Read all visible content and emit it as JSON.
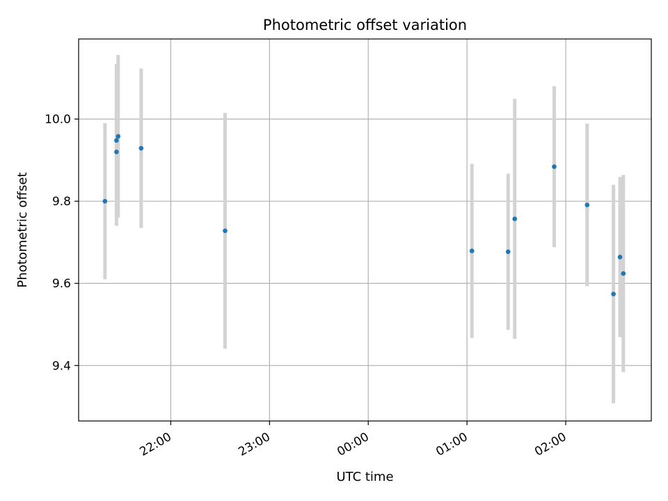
{
  "chart_data": {
    "type": "scatter",
    "title": "Photometric offset variation",
    "xlabel": "UTC time",
    "ylabel": "Photometric offset",
    "x_axis": "time",
    "xlim": [
      "21:04",
      "02:52"
    ],
    "ylim": [
      9.265,
      10.195
    ],
    "x_ticks": [
      "22:00",
      "23:00",
      "00:00",
      "01:00",
      "02:00"
    ],
    "y_ticks": [
      "9.4",
      "9.6",
      "9.8",
      "10.0"
    ],
    "grid": true,
    "marker_color": "#1f77b4",
    "errorbar_color": "#d3d3d3",
    "points": [
      {
        "x": "21:20",
        "y": 9.8,
        "err": 0.19
      },
      {
        "x": "21:27",
        "y": 9.92,
        "err": 0.18
      },
      {
        "x": "21:27",
        "y": 9.948,
        "err": 0.186
      },
      {
        "x": "21:28",
        "y": 9.958,
        "err": 0.198
      },
      {
        "x": "21:42",
        "y": 9.929,
        "err": 0.194
      },
      {
        "x": "22:33",
        "y": 9.728,
        "err": 0.287
      },
      {
        "x": "01:03",
        "y": 9.679,
        "err": 0.212
      },
      {
        "x": "01:25",
        "y": 9.677,
        "err": 0.19
      },
      {
        "x": "01:29",
        "y": 9.757,
        "err": 0.292
      },
      {
        "x": "01:53",
        "y": 9.884,
        "err": 0.196
      },
      {
        "x": "02:13",
        "y": 9.791,
        "err": 0.198
      },
      {
        "x": "02:29",
        "y": 9.574,
        "err": 0.266
      },
      {
        "x": "02:33",
        "y": 9.664,
        "err": 0.195
      },
      {
        "x": "02:35",
        "y": 9.624,
        "err": 0.24
      }
    ]
  }
}
